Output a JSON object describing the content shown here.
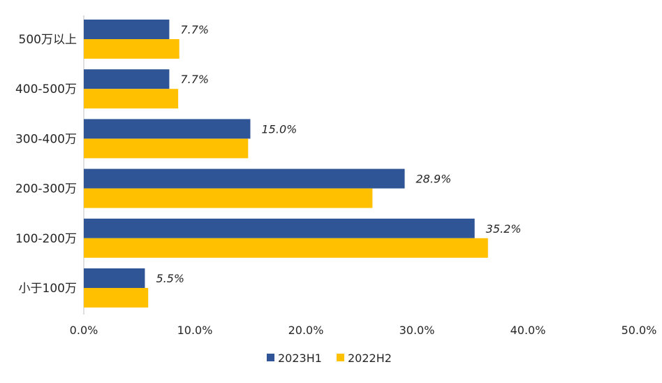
{
  "chart_data": {
    "type": "bar",
    "orientation": "horizontal",
    "categories": [
      "500万以上",
      "400-500万",
      "300-400万",
      "200-300万",
      "100-200万",
      "小于100万"
    ],
    "series": [
      {
        "name": "2023H1",
        "color": "#2f5597",
        "values": [
          7.7,
          7.7,
          15.0,
          28.9,
          35.2,
          5.5
        ],
        "labels": [
          "7.7%",
          "7.7%",
          "15.0%",
          "28.9%",
          "35.2%",
          "5.5%"
        ]
      },
      {
        "name": "2022H2",
        "color": "#ffc000",
        "values": [
          8.6,
          8.5,
          14.8,
          26.0,
          36.4,
          5.8
        ]
      }
    ],
    "xlim": [
      0,
      50
    ],
    "xticks": [
      "0.0%",
      "10.0%",
      "20.0%",
      "30.0%",
      "40.0%",
      "50.0%"
    ],
    "grid": false,
    "legend_position": "bottom"
  }
}
